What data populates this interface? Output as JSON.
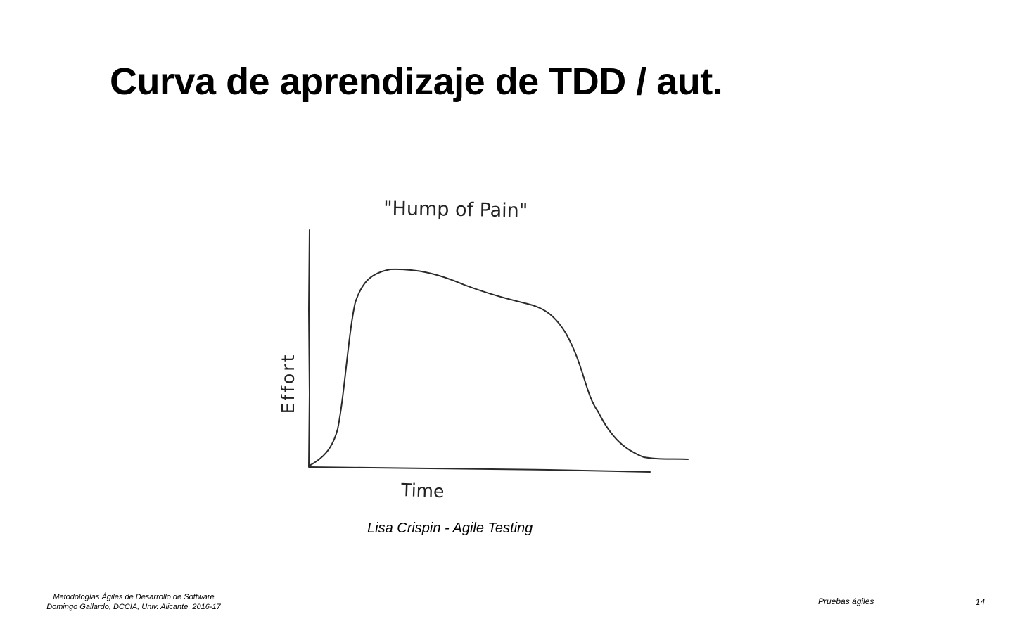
{
  "slide": {
    "title": "Curva de aprendizaje de TDD / aut.",
    "caption": "Lisa Crispin - Agile Testing"
  },
  "figure": {
    "heading": "\"Hump of Pain\"",
    "x_label": "Time",
    "y_label": "Effort"
  },
  "footer": {
    "course": "Metodologías Ágiles de Desarrollo de Software",
    "author": "Domingo Gallardo, DCCIA, Univ. Alicante, 2016-17",
    "section": "Pruebas ágiles",
    "page_number": "14"
  }
}
